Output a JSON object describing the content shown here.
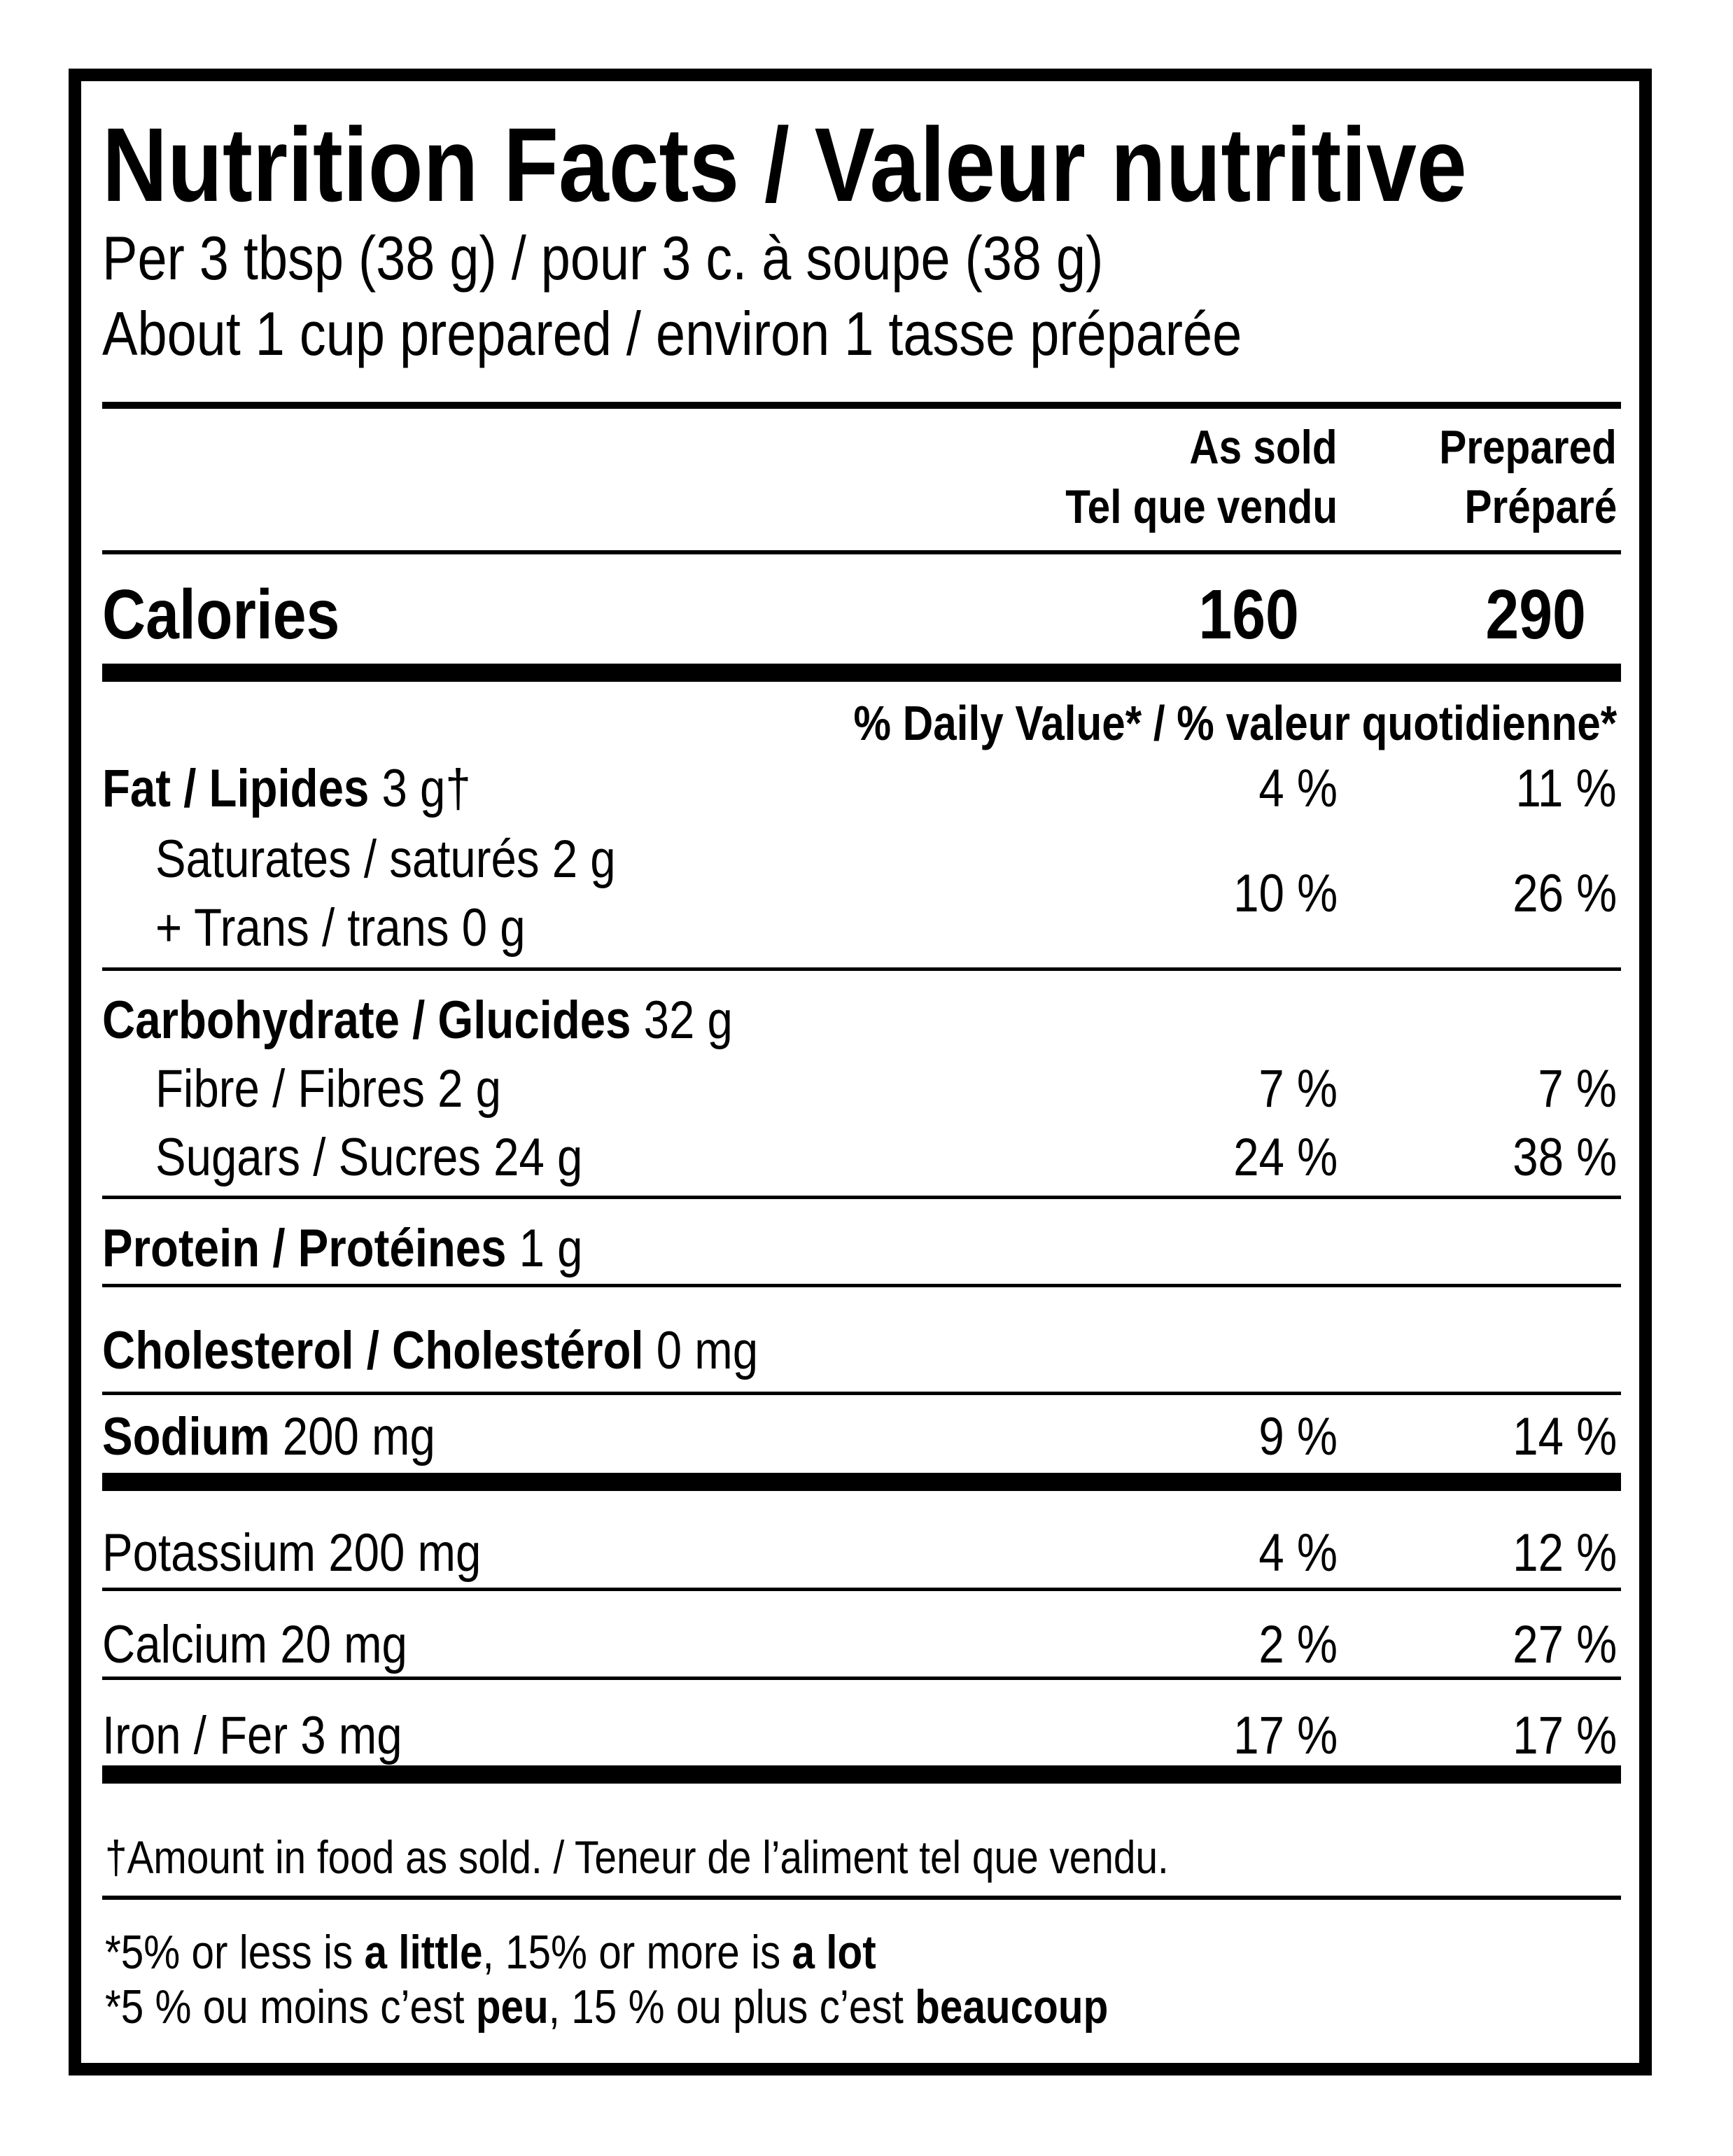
{
  "title": "Nutrition Facts / Valeur nutritive",
  "serving": {
    "line1": "Per 3 tbsp (38 g) / pour 3 c. à soupe (38 g)",
    "line2": "About 1 cup prepared / environ 1 tasse préparée"
  },
  "columns": {
    "as_sold_en": "As sold",
    "as_sold_fr": "Tel que vendu",
    "prepared_en": "Prepared",
    "prepared_fr": "Préparé"
  },
  "calories": {
    "label": "Calories",
    "as_sold": "160",
    "prepared": "290"
  },
  "daily_value_header": "% Daily Value* / % valeur quotidienne*",
  "nutrients": {
    "fat": {
      "name": "Fat / Lipides",
      "amount": "3 g†",
      "as_sold": "4 %",
      "prepared": "11 %"
    },
    "saturates": {
      "name": "Saturates / saturés 2 g"
    },
    "trans": {
      "name": "+ Trans / trans 0 g"
    },
    "sat_trans": {
      "as_sold": "10 %",
      "prepared": "26 %"
    },
    "carbohydrate": {
      "name": "Carbohydrate / Glucides",
      "amount": "32 g"
    },
    "fibre": {
      "name": "Fibre / Fibres 2 g",
      "as_sold": "7 %",
      "prepared": "7 %"
    },
    "sugars": {
      "name": "Sugars / Sucres 24 g",
      "as_sold": "24 %",
      "prepared": "38 %"
    },
    "protein": {
      "name": "Protein / Protéines",
      "amount": "1 g"
    },
    "cholesterol": {
      "name": "Cholesterol / Cholestérol",
      "amount": "0 mg"
    },
    "sodium": {
      "name": "Sodium",
      "amount": "200 mg",
      "as_sold": "9 %",
      "prepared": "14 %"
    },
    "potassium": {
      "name": "Potassium 200 mg",
      "as_sold": "4 %",
      "prepared": "12 %"
    },
    "calcium": {
      "name": "Calcium 20 mg",
      "as_sold": "2 %",
      "prepared": "27 %"
    },
    "iron": {
      "name": "Iron / Fer 3 mg",
      "as_sold": "17 %",
      "prepared": "17 %"
    }
  },
  "footnotes": {
    "dagger": "†Amount in food as sold. / Teneur de l’aliment tel que vendu.",
    "en_pre": "*5% or less is ",
    "en_little": "a little",
    "en_mid": ", 15% or more is ",
    "en_lot": "a lot",
    "fr_pre": "*5 % ou moins c’est ",
    "fr_peu": "peu",
    "fr_mid": ", 15 % ou plus c’est ",
    "fr_beaucoup": "beaucoup"
  }
}
